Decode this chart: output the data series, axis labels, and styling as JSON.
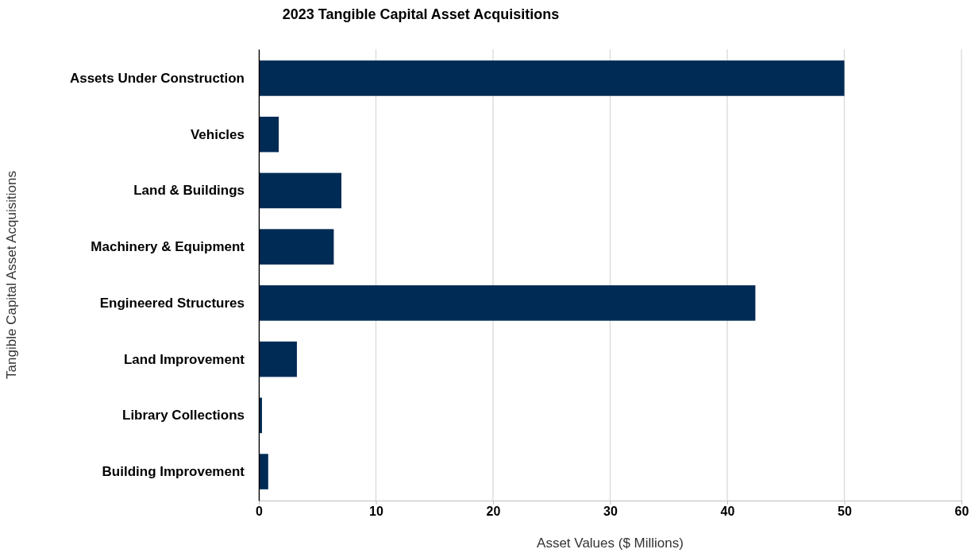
{
  "chart_data": {
    "type": "bar",
    "orientation": "horizontal",
    "title": "2023 Tangible Capital Asset Acquisitions",
    "xlabel": "Asset Values ($ Millions)",
    "ylabel": "Tangible Capital Asset Acquisitions",
    "categories": [
      "Assets Under Construction",
      "Vehicles",
      "Land & Buildings",
      "Machinery & Equipment",
      "Engineered Structures",
      "Land Improvement",
      "Library Collections",
      "Building Improvement"
    ],
    "values": [
      50.0,
      1.7,
      7.05,
      6.4,
      42.4,
      3.25,
      0.27,
      0.8
    ],
    "color": "#002b54",
    "xlim": [
      0,
      60
    ],
    "xticks": [
      0,
      10,
      20,
      30,
      40,
      50,
      60
    ],
    "grid": "x"
  }
}
